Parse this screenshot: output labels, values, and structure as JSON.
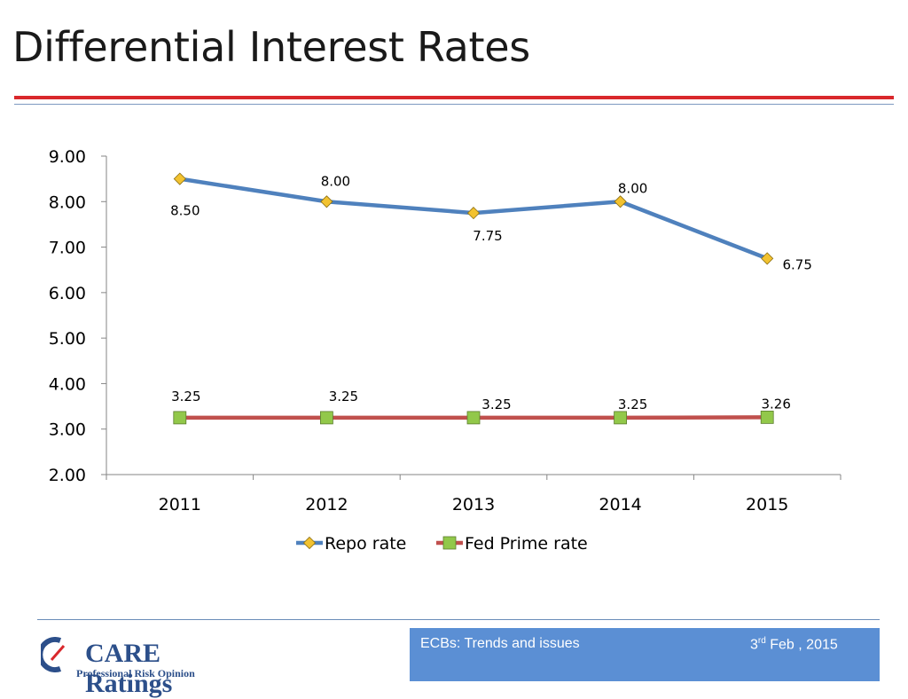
{
  "slide": {
    "title": "Differential Interest Rates"
  },
  "footer": {
    "left_text": "ECBs: Trends and issues",
    "date_day": "3",
    "date_suffix": "rd",
    "date_rest": " Feb , 2015"
  },
  "logo": {
    "name": "CARE Ratings",
    "tagline": "Professional Risk Opinion",
    "colors": {
      "primary": "#2c4f8a",
      "accent": "#d9282c"
    }
  },
  "chart_data": {
    "type": "line",
    "categories": [
      "2011",
      "2012",
      "2013",
      "2014",
      "2015"
    ],
    "ylim": [
      2.0,
      9.0
    ],
    "yticks": [
      "2.00",
      "3.00",
      "4.00",
      "5.00",
      "6.00",
      "7.00",
      "8.00",
      "9.00"
    ],
    "grid": false,
    "legend_position": "bottom",
    "series": [
      {
        "name": "Repo rate",
        "values": [
          8.5,
          8.0,
          7.75,
          8.0,
          6.75
        ],
        "labels": [
          "8.50",
          "8.00",
          "7.75",
          "8.00",
          "6.75"
        ],
        "color": "#4f81bd",
        "marker": "diamond",
        "marker_color": "#f2c230"
      },
      {
        "name": "Fed Prime rate",
        "values": [
          3.25,
          3.25,
          3.25,
          3.25,
          3.26
        ],
        "labels": [
          "3.25",
          "3.25",
          "3.25",
          "3.25",
          "3.26"
        ],
        "color": "#c0504d",
        "marker": "square",
        "marker_color": "#92c84a"
      }
    ]
  }
}
